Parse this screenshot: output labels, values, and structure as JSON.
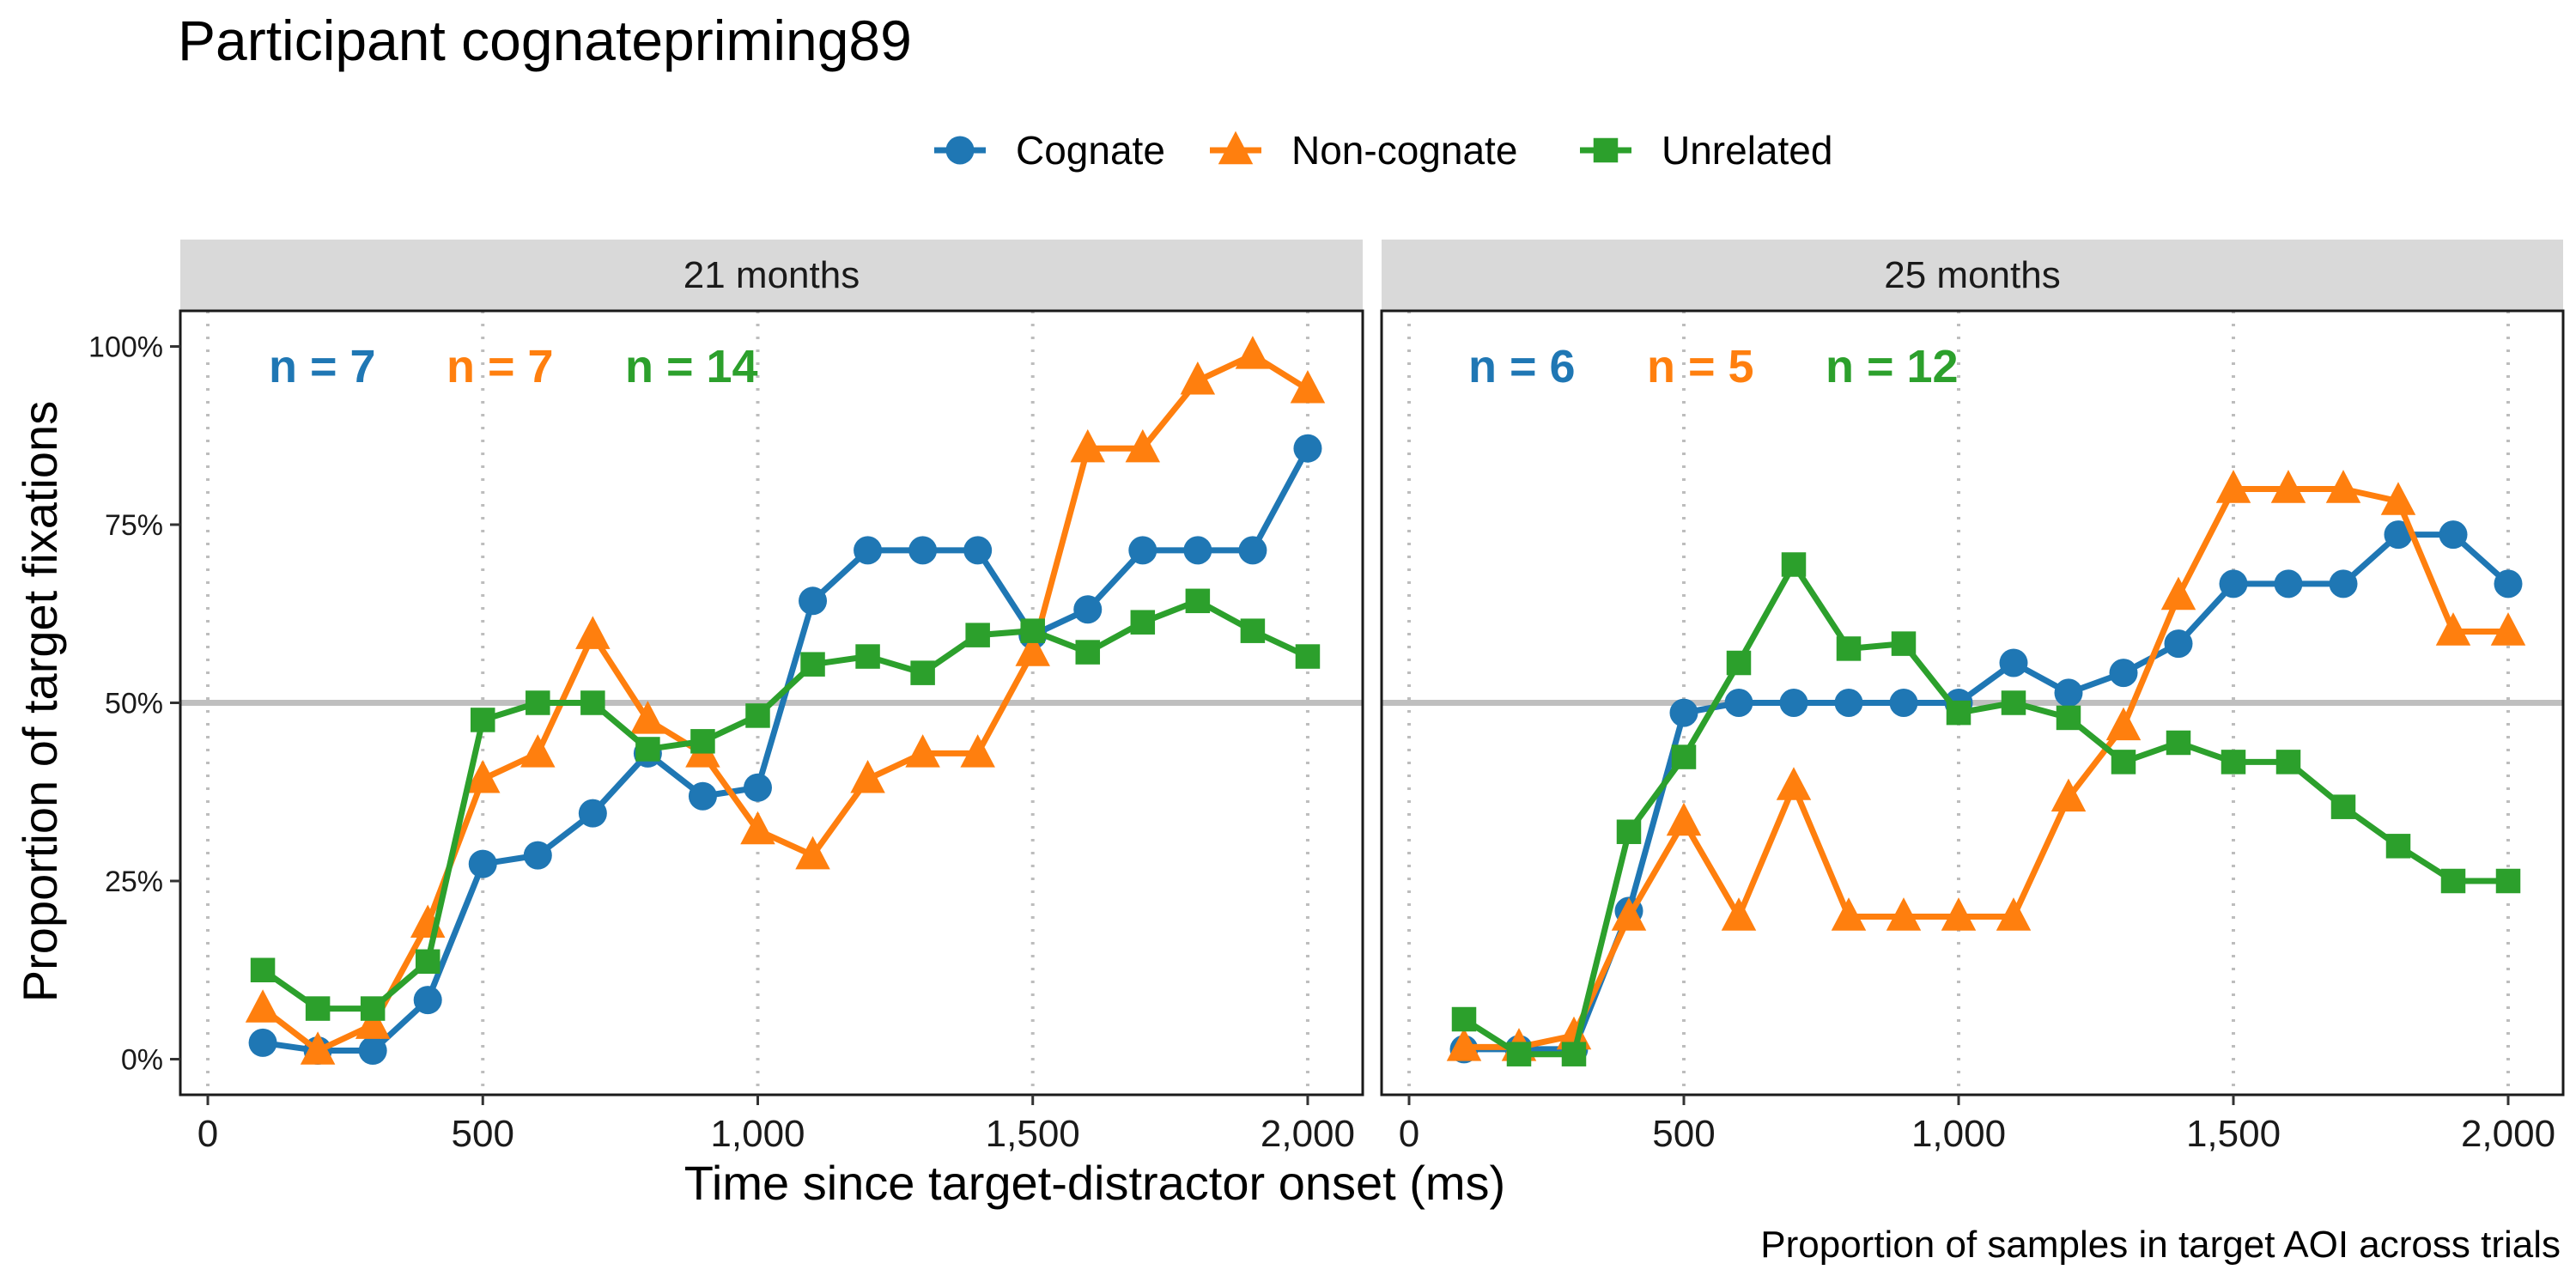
{
  "chart_data": {
    "type": "line",
    "title": "Participant cognatepriming89",
    "xlabel": "Time since target-distractor onset (ms)",
    "ylabel": "Proportion of target fixations",
    "caption": "Proportion of samples in target AOI across trials",
    "xlim": [
      -50,
      2100
    ],
    "ylim": [
      -0.05,
      1.05
    ],
    "x_ticks": [
      0,
      500,
      1000,
      1500,
      2000
    ],
    "x_tick_labels": [
      "0",
      "500",
      "1,000",
      "1,500",
      "2,000"
    ],
    "y_ticks": [
      0,
      0.25,
      0.5,
      0.75,
      1.0
    ],
    "y_tick_labels": [
      "0%",
      "25%",
      "50%",
      "75%",
      "100%"
    ],
    "reference_line_y": 0.5,
    "vertical_gridlines_x": [
      0,
      500,
      1000,
      1500,
      2000
    ],
    "legend_position": "top",
    "legend": [
      {
        "name": "Cognate",
        "color": "#1f77b4",
        "shape": "circle"
      },
      {
        "name": "Non-cognate",
        "color": "#ff7f0e",
        "shape": "triangle"
      },
      {
        "name": "Unrelated",
        "color": "#2ca02c",
        "shape": "square"
      }
    ],
    "x": [
      100,
      200,
      300,
      400,
      500,
      600,
      700,
      800,
      900,
      1000,
      1100,
      1200,
      1300,
      1400,
      1500,
      1600,
      1700,
      1800,
      1900,
      2000
    ],
    "panels": [
      {
        "label": "21 months",
        "n_labels": [
          "n = 7",
          "n = 7",
          "n = 14"
        ],
        "series": [
          {
            "name": "Cognate",
            "values": [
              0.023,
              0.012,
              0.012,
              0.083,
              0.274,
              0.286,
              0.345,
              0.429,
              0.369,
              0.381,
              0.643,
              0.714,
              0.714,
              0.714,
              0.595,
              0.631,
              0.714,
              0.714,
              0.714,
              0.857
            ]
          },
          {
            "name": "Non-cognate",
            "values": [
              0.071,
              0.012,
              0.048,
              0.19,
              0.393,
              0.429,
              0.595,
              0.476,
              0.429,
              0.321,
              0.286,
              0.393,
              0.429,
              0.429,
              0.571,
              0.857,
              0.857,
              0.952,
              0.988,
              0.94
            ]
          },
          {
            "name": "Unrelated",
            "values": [
              0.125,
              0.071,
              0.071,
              0.137,
              0.476,
              0.5,
              0.5,
              0.435,
              0.446,
              0.482,
              0.554,
              0.565,
              0.542,
              0.595,
              0.601,
              0.571,
              0.613,
              0.643,
              0.601,
              0.565
            ]
          }
        ]
      },
      {
        "label": "25 months",
        "n_labels": [
          "n = 6",
          "n = 5",
          "n = 12"
        ],
        "series": [
          {
            "name": "Cognate",
            "values": [
              0.014,
              0.014,
              0.014,
              0.208,
              0.486,
              0.5,
              0.5,
              0.5,
              0.5,
              0.5,
              0.556,
              0.514,
              0.542,
              0.583,
              0.667,
              0.667,
              0.667,
              0.736,
              0.736,
              0.667
            ]
          },
          {
            "name": "Non-cognate",
            "values": [
              0.017,
              0.017,
              0.033,
              0.2,
              0.333,
              0.2,
              0.383,
              0.2,
              0.2,
              0.2,
              0.2,
              0.367,
              0.467,
              0.65,
              0.8,
              0.8,
              0.8,
              0.783,
              0.6,
              0.6
            ]
          },
          {
            "name": "Unrelated",
            "values": [
              0.056,
              0.007,
              0.007,
              0.319,
              0.424,
              0.556,
              0.694,
              0.576,
              0.583,
              0.486,
              0.5,
              0.479,
              0.417,
              0.444,
              0.417,
              0.417,
              0.354,
              0.299,
              0.25,
              0.25
            ]
          }
        ]
      }
    ]
  }
}
